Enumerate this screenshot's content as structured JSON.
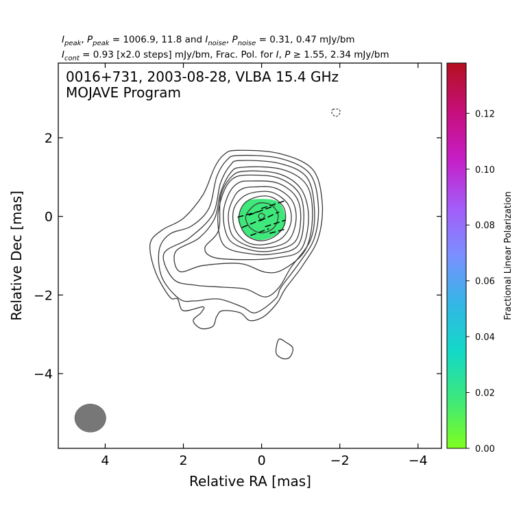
{
  "chart_data": {
    "type": "contour",
    "header": {
      "line1": {
        "i_sym": "I",
        "i_sub": "peak",
        "sep1": ", ",
        "p_sym": "P",
        "p_sub": "peak",
        "text1": " = 1006.9, 11.8 and ",
        "i2_sym": "I",
        "i2_sub": "noise",
        "sep2": ", ",
        "p2_sym": "P",
        "p2_sub": "noise",
        "text2": " = 0.31, 0.47 mJy/bm"
      },
      "line2": {
        "i_sym": "I",
        "i_sub": "cont",
        "text1": " = 0.93 [x2.0 steps] mJy/bm, Frac. Pol. for ",
        "i2_sym": "I",
        "sep": ", ",
        "p_sym": "P",
        "text2": " ≥  1.55, 2.34 mJy/bm"
      }
    },
    "title_line1": "0016+731, 2003-08-28, VLBA 15.4 GHz",
    "title_line2": "MOJAVE Program",
    "xlabel": "Relative RA [mas]",
    "ylabel": "Relative Dec [mas]",
    "xlim": [
      5.2,
      -4.6
    ],
    "ylim": [
      -5.9,
      3.9
    ],
    "xticks": [
      4,
      2,
      0,
      -2,
      -4
    ],
    "xtick_labels": [
      "4",
      "2",
      "0",
      "−2",
      "−4"
    ],
    "yticks": [
      2,
      0,
      -2,
      -4
    ],
    "ytick_labels": [
      "2",
      "0",
      "−2",
      "−4"
    ],
    "colorbar": {
      "label": "Fractional Linear Polarization",
      "range": [
        0.0,
        0.138
      ],
      "ticks": [
        0.0,
        0.02,
        0.04,
        0.06,
        0.08,
        0.1,
        0.12
      ],
      "tick_labels": [
        "0.00",
        "0.02",
        "0.04",
        "0.06",
        "0.08",
        "0.10",
        "0.12"
      ],
      "colormap": [
        "#7fff1f",
        "#3ee87a",
        "#13d9c7",
        "#33b6e6",
        "#7a90ff",
        "#a45cf8",
        "#c61ec6",
        "#c60f7a",
        "#b3101e"
      ]
    },
    "contour_color": "#3a3a3a",
    "contours": [
      {
        "level": "core",
        "points": [
          [
            0.02,
            0.08
          ],
          [
            -0.08,
            0.02
          ],
          [
            0.0,
            -0.08
          ],
          [
            0.08,
            -0.0
          ]
        ]
      },
      {
        "level": "c2",
        "points": [
          [
            0.12,
            0.32
          ],
          [
            -0.22,
            0.3
          ],
          [
            -0.42,
            0.05
          ],
          [
            -0.32,
            -0.28
          ],
          [
            0.0,
            -0.42
          ],
          [
            0.3,
            -0.28
          ],
          [
            0.4,
            0.02
          ]
        ]
      },
      {
        "level": "c3",
        "points": [
          [
            0.1,
            0.5
          ],
          [
            -0.28,
            0.48
          ],
          [
            -0.58,
            0.2
          ],
          [
            -0.58,
            -0.22
          ],
          [
            -0.32,
            -0.52
          ],
          [
            0.05,
            -0.62
          ],
          [
            0.42,
            -0.45
          ],
          [
            0.58,
            -0.05
          ],
          [
            0.45,
            0.32
          ]
        ]
      },
      {
        "level": "c4",
        "points": [
          [
            0.15,
            0.62
          ],
          [
            -0.3,
            0.6
          ],
          [
            -0.68,
            0.3
          ],
          [
            -0.75,
            -0.15
          ],
          [
            -0.52,
            -0.55
          ],
          [
            -0.05,
            -0.72
          ],
          [
            0.38,
            -0.65
          ],
          [
            0.68,
            -0.32
          ],
          [
            0.72,
            0.15
          ],
          [
            0.5,
            0.48
          ]
        ]
      },
      {
        "level": "c5",
        "points": [
          [
            0.18,
            0.75
          ],
          [
            -0.35,
            0.72
          ],
          [
            -0.78,
            0.4
          ],
          [
            -0.88,
            -0.1
          ],
          [
            -0.68,
            -0.62
          ],
          [
            -0.15,
            -0.8
          ],
          [
            0.35,
            -0.75
          ],
          [
            0.75,
            -0.48
          ],
          [
            0.85,
            0.05
          ],
          [
            0.7,
            0.5
          ],
          [
            0.5,
            0.7
          ]
        ]
      },
      {
        "level": "c6",
        "points": [
          [
            0.25,
            0.9
          ],
          [
            -0.4,
            0.85
          ],
          [
            -0.88,
            0.5
          ],
          [
            -1.0,
            -0.05
          ],
          [
            -0.85,
            -0.65
          ],
          [
            -0.25,
            -0.88
          ],
          [
            0.3,
            -0.85
          ],
          [
            0.82,
            -0.6
          ],
          [
            0.98,
            0.0
          ],
          [
            0.85,
            0.55
          ],
          [
            0.6,
            0.85
          ]
        ]
      },
      {
        "level": "c7",
        "points": [
          [
            0.35,
            1.05
          ],
          [
            -0.42,
            0.98
          ],
          [
            -0.95,
            0.6
          ],
          [
            -1.08,
            -0.05
          ],
          [
            -0.92,
            -0.75
          ],
          [
            -0.35,
            -0.95
          ],
          [
            0.3,
            -0.95
          ],
          [
            0.95,
            -0.75
          ],
          [
            1.12,
            -0.1
          ],
          [
            1.0,
            0.55
          ],
          [
            0.75,
            0.95
          ]
        ]
      },
      {
        "level": "c8",
        "points": [
          [
            0.42,
            1.15
          ],
          [
            -0.45,
            1.08
          ],
          [
            -1.02,
            0.68
          ],
          [
            -1.2,
            -0.05
          ],
          [
            -1.0,
            -0.85
          ],
          [
            -0.4,
            -1.05
          ],
          [
            0.35,
            -1.1
          ],
          [
            1.2,
            -1.05
          ],
          [
            1.45,
            -0.8
          ],
          [
            1.1,
            -0.35
          ],
          [
            1.05,
            0.5
          ],
          [
            0.78,
            1.0
          ]
        ]
      },
      {
        "level": "c9",
        "points": [
          [
            0.5,
            1.25
          ],
          [
            -0.5,
            1.2
          ],
          [
            -1.15,
            0.8
          ],
          [
            -1.3,
            0.0
          ],
          [
            -1.12,
            -0.85
          ],
          [
            -0.55,
            -1.35
          ],
          [
            -0.1,
            -1.42
          ],
          [
            0.55,
            -1.2
          ],
          [
            1.5,
            -1.25
          ],
          [
            2.1,
            -1.4
          ],
          [
            2.2,
            -0.9
          ],
          [
            1.6,
            -0.55
          ],
          [
            1.2,
            -0.05
          ],
          [
            1.05,
            0.6
          ],
          [
            0.8,
            1.1
          ]
        ]
      },
      {
        "level": "c10",
        "points": [
          [
            0.55,
            1.42
          ],
          [
            -0.45,
            1.35
          ],
          [
            -1.15,
            1.0
          ],
          [
            -1.35,
            0.2
          ],
          [
            -1.25,
            -0.6
          ],
          [
            -0.75,
            -1.3
          ],
          [
            -0.45,
            -1.8
          ],
          [
            -0.1,
            -2.05
          ],
          [
            0.4,
            -1.85
          ],
          [
            1.0,
            -1.8
          ],
          [
            1.7,
            -1.75
          ],
          [
            2.25,
            -1.6
          ],
          [
            2.5,
            -0.95
          ],
          [
            1.85,
            -0.55
          ],
          [
            1.25,
            0.05
          ],
          [
            1.05,
            0.85
          ],
          [
            0.8,
            1.3
          ]
        ]
      },
      {
        "level": "c11",
        "points": [
          [
            0.6,
            1.55
          ],
          [
            -0.45,
            1.48
          ],
          [
            -1.22,
            1.1
          ],
          [
            -1.45,
            0.3
          ],
          [
            -1.35,
            -0.55
          ],
          [
            -0.95,
            -1.2
          ],
          [
            -0.5,
            -1.8
          ],
          [
            -0.35,
            -2.1
          ],
          [
            0.15,
            -2.45
          ],
          [
            0.5,
            -2.3
          ],
          [
            1.1,
            -2.1
          ],
          [
            1.7,
            -2.15
          ],
          [
            2.1,
            -2.1
          ],
          [
            2.55,
            -1.55
          ],
          [
            2.62,
            -0.85
          ],
          [
            2.35,
            -0.45
          ],
          [
            1.8,
            -0.25
          ],
          [
            1.35,
            0.2
          ],
          [
            1.15,
            1.0
          ],
          [
            0.9,
            1.42
          ]
        ]
      },
      {
        "level": "c12",
        "points": [
          [
            0.62,
            1.68
          ],
          [
            -0.45,
            1.6
          ],
          [
            -1.3,
            1.2
          ],
          [
            -1.55,
            0.35
          ],
          [
            -1.45,
            -0.55
          ],
          [
            -1.05,
            -1.25
          ],
          [
            -0.6,
            -1.85
          ],
          [
            -0.4,
            -2.2
          ],
          [
            -0.05,
            -2.55
          ],
          [
            0.3,
            -2.65
          ],
          [
            0.55,
            -2.45
          ],
          [
            1.0,
            -2.4
          ],
          [
            1.15,
            -2.55
          ],
          [
            1.25,
            -2.8
          ],
          [
            1.55,
            -2.85
          ],
          [
            1.75,
            -2.65
          ],
          [
            1.55,
            -2.45
          ],
          [
            1.5,
            -2.3
          ],
          [
            2.0,
            -2.4
          ],
          [
            2.15,
            -2.1
          ],
          [
            2.35,
            -2.05
          ],
          [
            2.72,
            -1.4
          ],
          [
            2.85,
            -0.7
          ],
          [
            2.55,
            -0.35
          ],
          [
            2.0,
            -0.05
          ],
          [
            1.5,
            0.55
          ],
          [
            1.2,
            1.25
          ],
          [
            0.95,
            1.58
          ]
        ]
      },
      {
        "level": "blob",
        "points": [
          [
            -0.45,
            -3.12
          ],
          [
            -0.62,
            -3.2
          ],
          [
            -0.8,
            -3.35
          ],
          [
            -0.72,
            -3.58
          ],
          [
            -0.55,
            -3.62
          ],
          [
            -0.38,
            -3.5
          ],
          [
            -0.38,
            -3.3
          ]
        ]
      }
    ],
    "negative_contour": [
      [
        -1.82,
        2.72
      ],
      [
        -1.98,
        2.72
      ],
      [
        -2.0,
        2.62
      ],
      [
        -1.9,
        2.54
      ],
      [
        -1.8,
        2.62
      ]
    ],
    "pol_region": [
      [
        0.3,
        0.42
      ],
      [
        -0.3,
        0.42
      ],
      [
        -0.55,
        0.2
      ],
      [
        -0.6,
        -0.22
      ],
      [
        -0.32,
        -0.5
      ],
      [
        0.05,
        -0.6
      ],
      [
        0.4,
        -0.45
      ],
      [
        0.6,
        -0.1
      ],
      [
        0.5,
        0.22
      ]
    ],
    "pol_fraction": 0.018,
    "evpa_vectors": [
      {
        "x": -0.3,
        "y": 0.3,
        "len": 0.65,
        "angle_deg": 18
      },
      {
        "x": 0.0,
        "y": 0.15,
        "len": 0.7,
        "angle_deg": 20
      },
      {
        "x": 0.35,
        "y": 0.05,
        "len": 0.55,
        "angle_deg": 15
      },
      {
        "x": -0.2,
        "y": 0.0,
        "len": 0.55,
        "angle_deg": 25
      },
      {
        "x": 0.25,
        "y": -0.18,
        "len": 0.55,
        "angle_deg": 22
      },
      {
        "x": -0.35,
        "y": -0.18,
        "len": 0.55,
        "angle_deg": 18
      },
      {
        "x": 0.05,
        "y": -0.4,
        "len": 0.5,
        "angle_deg": 20
      },
      {
        "x": -0.4,
        "y": -0.38,
        "len": 0.4,
        "angle_deg": 15
      }
    ],
    "beam": {
      "x": 4.38,
      "y": -5.13,
      "major_mas": 0.72,
      "minor_mas": 0.8,
      "color": "#777777"
    }
  }
}
